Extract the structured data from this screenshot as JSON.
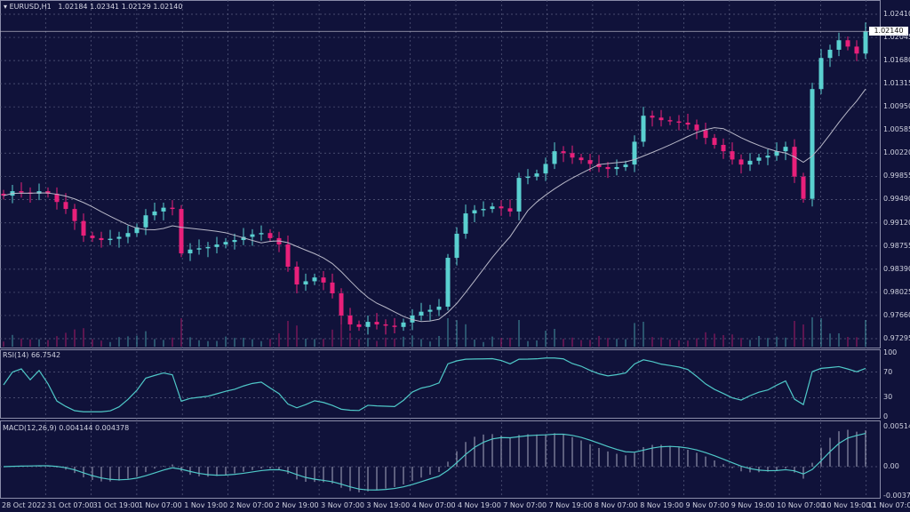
{
  "header": {
    "symbol": "EURUSD,H1",
    "open": "1.02184",
    "high": "1.02341",
    "low": "1.02129",
    "close": "1.02140"
  },
  "current_price": "1.02140",
  "colors": {
    "background": "#10123a",
    "bull": "#5ad0d0",
    "bear": "#e8207a",
    "ma": "#b8b8c8",
    "rsi": "#4fc8c8",
    "macd": "#4fc8c8",
    "grid": "#5a5e80"
  },
  "chart_data": [
    {
      "type": "candlestick",
      "title": "EURUSD,H1",
      "y_ticks": [
        "1.02410",
        "1.02045",
        "1.01680",
        "1.01315",
        "1.00950",
        "1.00585",
        "1.00220",
        "0.99855",
        "0.99490",
        "0.99120",
        "0.98755",
        "0.98390",
        "0.98025",
        "0.97660",
        "0.97295"
      ],
      "ylim": [
        0.97295,
        1.0241
      ],
      "x_ticks": [
        "28 Oct 2022",
        "31 Oct 07:00",
        "31 Oct 19:00",
        "1 Nov 07:00",
        "1 Nov 19:00",
        "2 Nov 07:00",
        "2 Nov 19:00",
        "3 Nov 07:00",
        "3 Nov 19:00",
        "4 Nov 07:00",
        "4 Nov 19:00",
        "7 Nov 07:00",
        "7 Nov 19:00",
        "8 Nov 07:00",
        "8 Nov 19:00",
        "9 Nov 07:00",
        "9 Nov 19:00",
        "10 Nov 07:00",
        "10 Nov 19:00",
        "11 Nov 07:00"
      ],
      "closes": [
        0.9955,
        0.9962,
        0.996,
        0.9958,
        0.9962,
        0.9958,
        0.9945,
        0.9934,
        0.9915,
        0.9892,
        0.9888,
        0.9885,
        0.9887,
        0.989,
        0.9896,
        0.9905,
        0.9924,
        0.993,
        0.9936,
        0.9934,
        0.9864,
        0.987,
        0.9872,
        0.9874,
        0.9878,
        0.9882,
        0.9885,
        0.989,
        0.9894,
        0.9896,
        0.9888,
        0.9878,
        0.9843,
        0.9815,
        0.982,
        0.9826,
        0.9818,
        0.9801,
        0.9766,
        0.9752,
        0.9748,
        0.9756,
        0.9752,
        0.975,
        0.9748,
        0.9755,
        0.9766,
        0.9772,
        0.9775,
        0.978,
        0.9857,
        0.9895,
        0.9927,
        0.9932,
        0.9934,
        0.9938,
        0.9935,
        0.993,
        0.9983,
        0.9985,
        0.999,
        1.0005,
        1.0025,
        1.0022,
        1.0015,
        1.0011,
        1.0005,
        1.0,
        0.9997,
        1.0,
        1.0004,
        1.004,
        1.0081,
        1.0078,
        1.0074,
        1.0072,
        1.007,
        1.0067,
        1.0058,
        1.0046,
        1.0035,
        1.0025,
        1.0012,
        1.0004,
        1.001,
        1.0015,
        1.0018,
        1.0025,
        1.0032,
        0.9985,
        0.995,
        1.0123,
        1.0172,
        1.0185,
        1.02,
        1.019,
        1.0179,
        1.0214
      ]
    },
    {
      "type": "line",
      "title": "RSI(14) 66.7542",
      "y_ticks": [
        "100",
        "70",
        "30",
        "0"
      ],
      "ylim": [
        0,
        100
      ]
    },
    {
      "type": "line",
      "title": "MACD(12,26,9) 0.004144 0.004378",
      "y_ticks": [
        "0.005142",
        "0.00",
        "-0.003751"
      ],
      "ylim": [
        -0.003751,
        0.005142
      ]
    }
  ]
}
